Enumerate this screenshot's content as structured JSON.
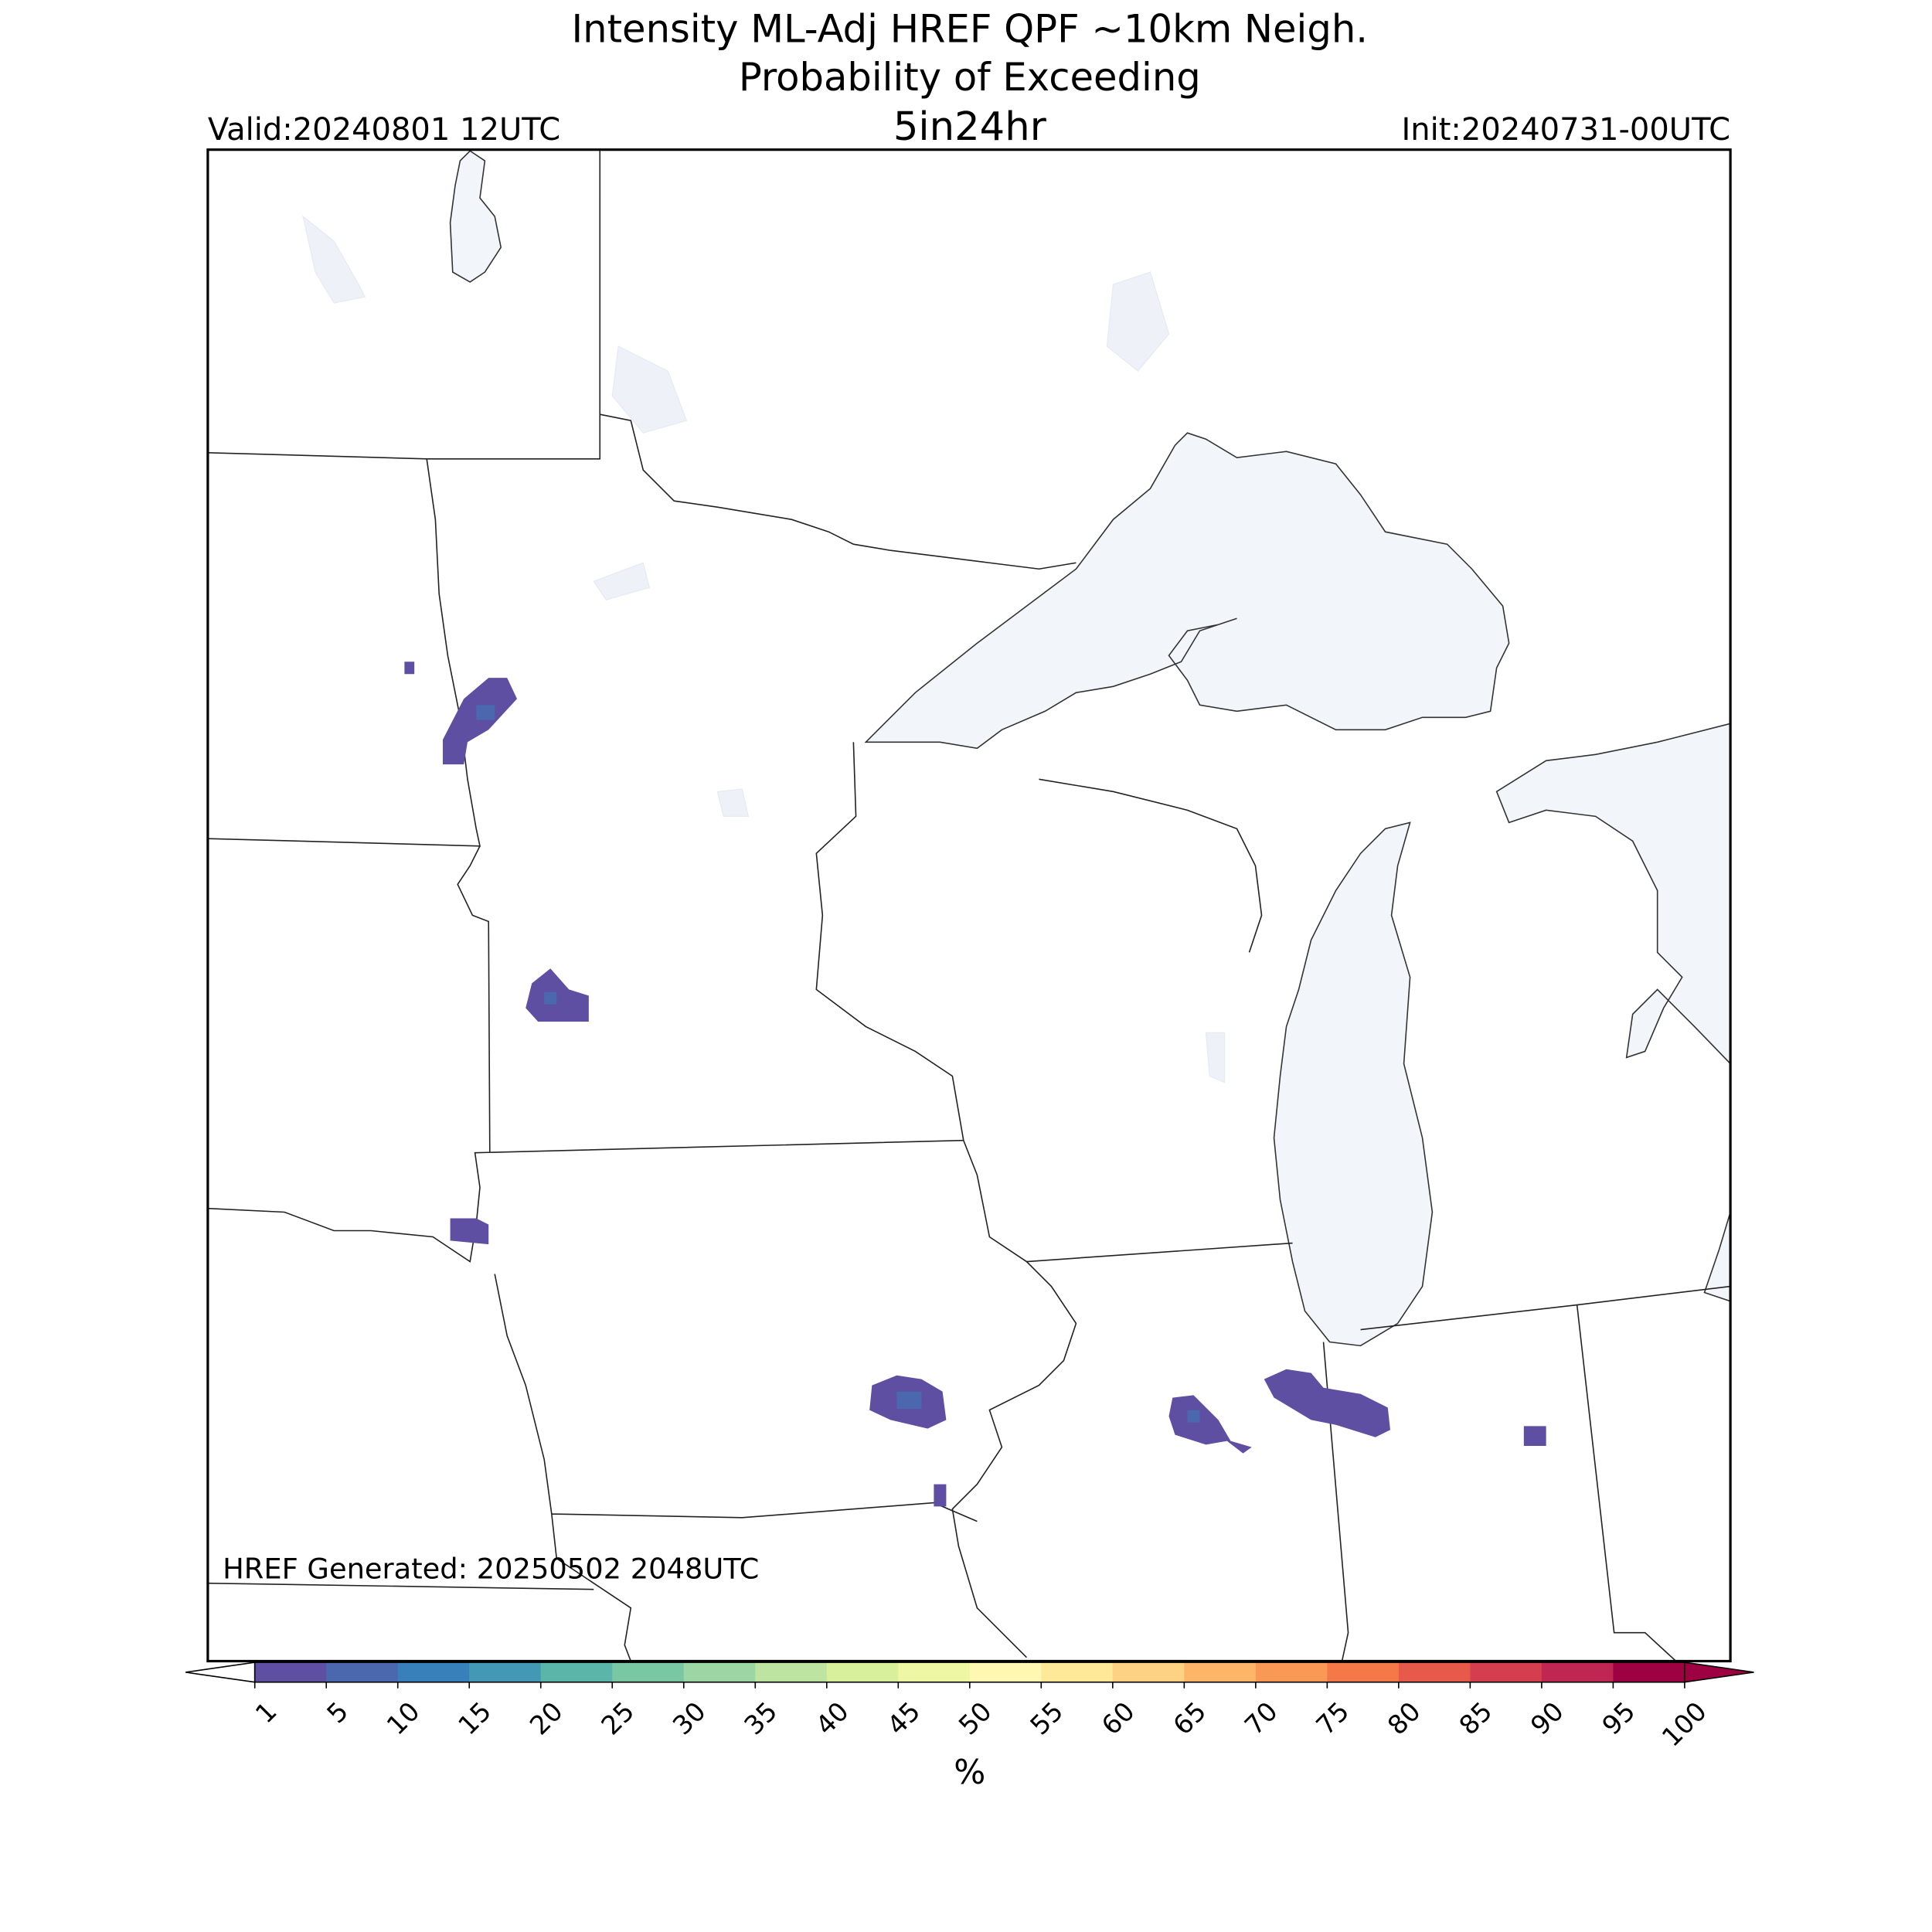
{
  "header": {
    "title": "Intensity ML-Adj HREF QPF ~10km Neigh.",
    "subtitle": "Probability of Exceeding",
    "threshold": "5in24hr",
    "valid": "Valid:20240801 12UTC",
    "init": "Init:20240731-00UTC"
  },
  "footer": {
    "generated": "HREF Generated: 20250502 2048UTC"
  },
  "colorbar": {
    "label": "%",
    "levels": [
      1,
      5,
      10,
      15,
      20,
      25,
      30,
      35,
      40,
      45,
      50,
      55,
      60,
      65,
      70,
      75,
      80,
      85,
      90,
      95,
      100
    ],
    "colors": [
      "#5e4fa2",
      "#4b67ad",
      "#3780b9",
      "#4399b5",
      "#5cb5a9",
      "#7ac7a4",
      "#9cd6a4",
      "#bde4a1",
      "#d8ef9b",
      "#eef8a4",
      "#fef8b2",
      "#fee999",
      "#fdd282",
      "#fdb668",
      "#fa9856",
      "#f57849",
      "#e75948",
      "#d53e4f",
      "#bf2651",
      "#9e0142"
    ]
  }
}
